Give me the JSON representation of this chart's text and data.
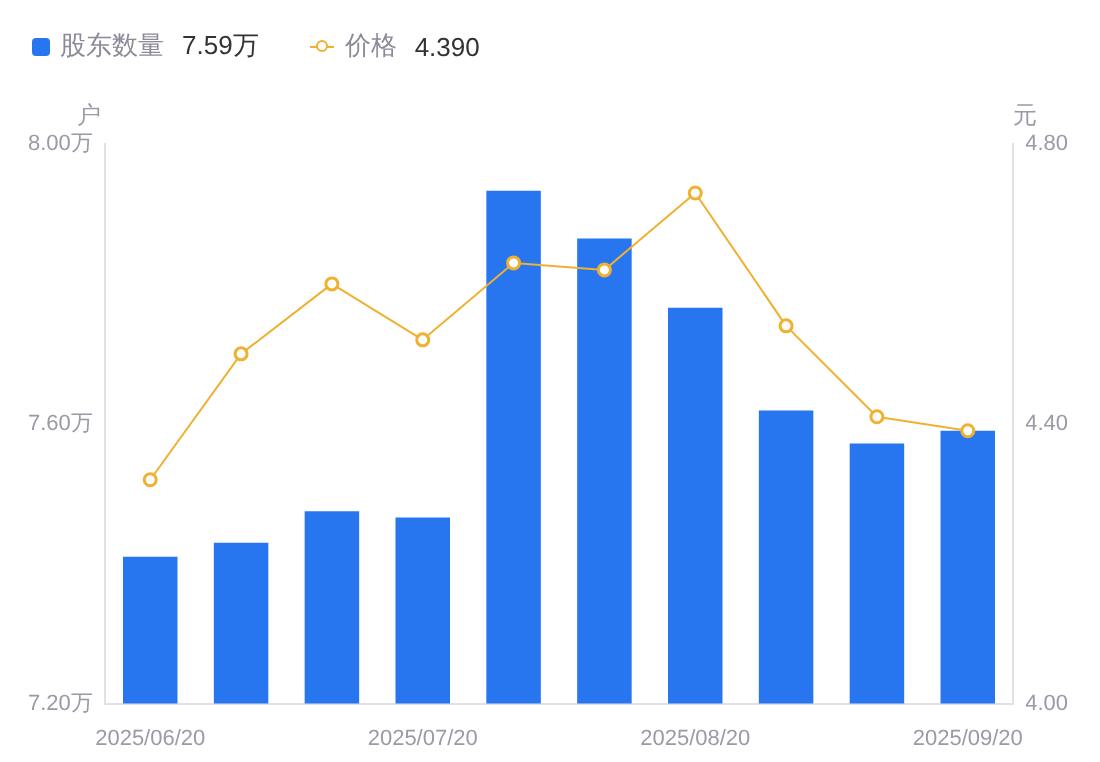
{
  "chart_data": {
    "type": "bar",
    "ylabel": "户",
    "y2label": "元",
    "categories": [
      "2025/06/20",
      null,
      null,
      "2025/07/20",
      null,
      null,
      "2025/08/20",
      null,
      null,
      "2025/09/20"
    ],
    "series": [
      {
        "name": "股东数量",
        "color": "#2776f0",
        "values": [
          7.41,
          7.43,
          7.475,
          7.466,
          7.933,
          7.865,
          7.766,
          7.619,
          7.572,
          7.59
        ]
      },
      {
        "name": "价格",
        "type": "line",
        "axis": "y2",
        "color": "#f0b030",
        "marker": "circle",
        "values": [
          4.32,
          4.5,
          4.6,
          4.52,
          4.63,
          4.62,
          4.73,
          4.54,
          4.41,
          4.39
        ]
      }
    ],
    "annotations": [
      "7.59万",
      "4.390"
    ],
    "ylim": [
      7.2,
      8.0
    ],
    "yticks": [
      {
        "value": 7.2,
        "label": "7.20万"
      },
      {
        "value": 7.6,
        "label": "7.60万"
      },
      {
        "value": 8.0,
        "label": "8.00万"
      }
    ],
    "y2lim": [
      4.0,
      4.8
    ],
    "y2ticks": [
      {
        "value": 4.0,
        "label": "4.00"
      },
      {
        "value": 4.4,
        "label": "4.40"
      },
      {
        "value": 4.8,
        "label": "4.80"
      }
    ],
    "legend": "top left"
  }
}
